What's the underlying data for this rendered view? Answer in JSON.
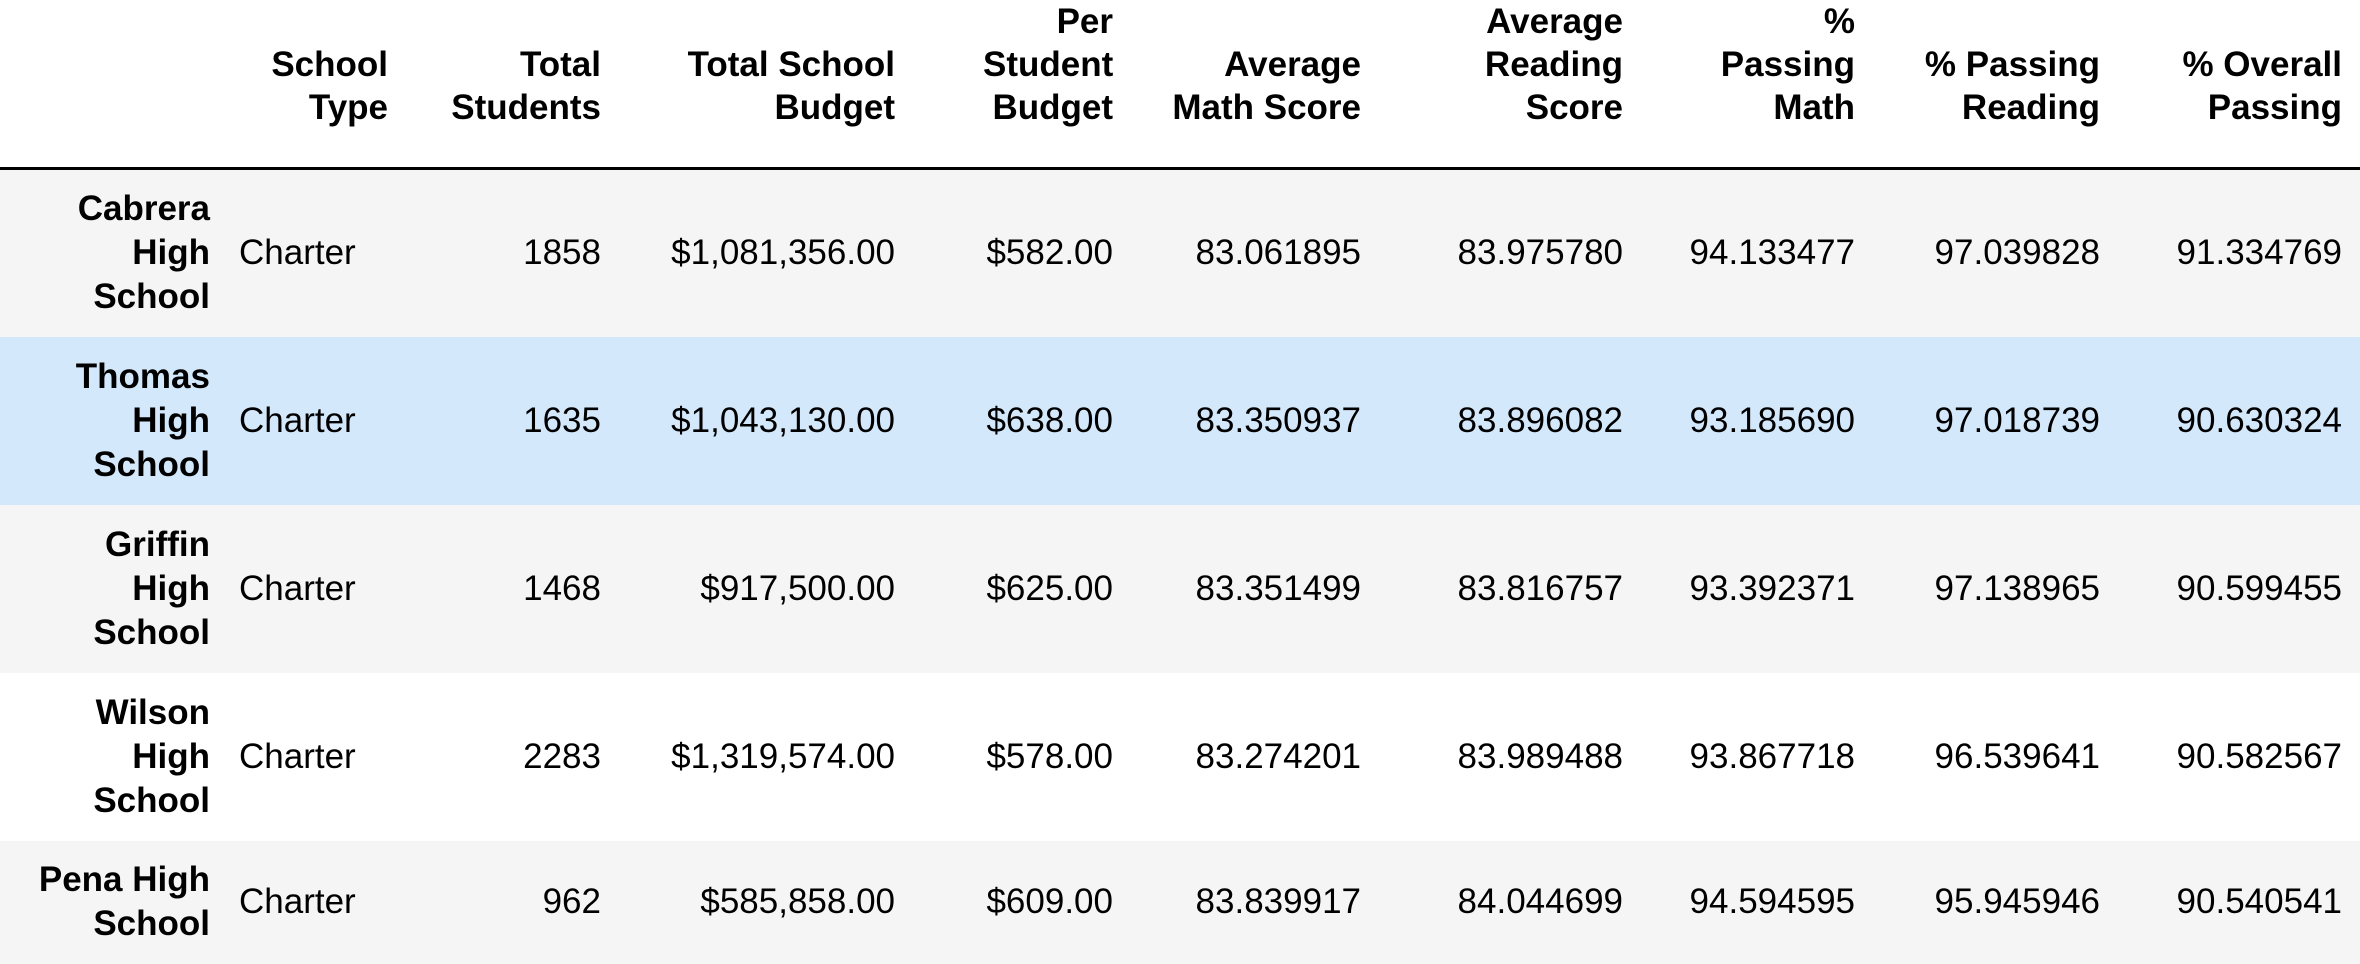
{
  "table": {
    "index_header": "",
    "columns": [
      "School Type",
      "Total Students",
      "Total School Budget",
      "Per Student Budget",
      "Average Math Score",
      "Average Reading Score",
      "% Passing Math",
      "% Passing Reading",
      "% Overall Passing"
    ],
    "rows": [
      {
        "school": "Cabrera High School",
        "values": [
          "Charter",
          "1858",
          "$1,081,356.00",
          "$582.00",
          "83.061895",
          "83.975780",
          "94.133477",
          "97.039828",
          "91.334769"
        ]
      },
      {
        "school": "Thomas High School",
        "values": [
          "Charter",
          "1635",
          "$1,043,130.00",
          "$638.00",
          "83.350937",
          "83.896082",
          "93.185690",
          "97.018739",
          "90.630324"
        ]
      },
      {
        "school": "Griffin High School",
        "values": [
          "Charter",
          "1468",
          "$917,500.00",
          "$625.00",
          "83.351499",
          "83.816757",
          "93.392371",
          "97.138965",
          "90.599455"
        ]
      },
      {
        "school": "Wilson High School",
        "values": [
          "Charter",
          "2283",
          "$1,319,574.00",
          "$578.00",
          "83.274201",
          "83.989488",
          "93.867718",
          "96.539641",
          "90.582567"
        ]
      },
      {
        "school": "Pena High School",
        "values": [
          "Charter",
          "962",
          "$585,858.00",
          "$609.00",
          "83.839917",
          "84.044699",
          "94.594595",
          "95.945946",
          "90.540541"
        ]
      }
    ],
    "highlighted_row": 1
  },
  "colors": {
    "row_striped": "#f5f5f5",
    "row_plain": "#ffffff",
    "row_highlight": "#d4e8fb",
    "header_rule": "#000000"
  }
}
